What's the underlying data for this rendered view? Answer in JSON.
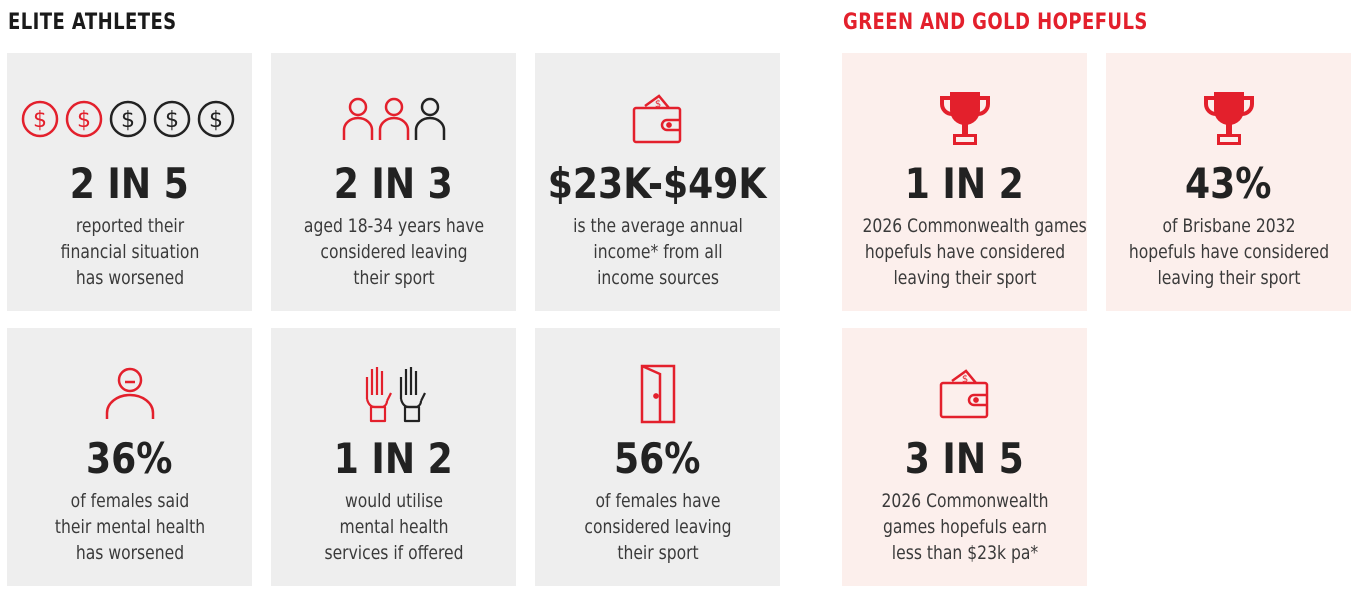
{
  "colors": {
    "accent_red": "#e3202c",
    "card_grey": "#eeeeee",
    "card_pink": "#fcefec",
    "stat_text": "#222222",
    "body_text": "#3a3a3a"
  },
  "sections": {
    "elite": {
      "title": "ELITE ATHLETES"
    },
    "hopefuls": {
      "title": "GREEN AND GOLD HOPEFULS"
    }
  },
  "cards": [
    {
      "icon": "dollar-coins-icon",
      "stat": "2 IN 5",
      "desc": [
        "reported their",
        "financial situation",
        "has worsened"
      ],
      "icon_highlight": {
        "filled": 2,
        "total": 5
      }
    },
    {
      "icon": "people-icon",
      "stat": "2 IN 3",
      "desc": [
        "aged 18-34 years have",
        "considered leaving",
        "their sport"
      ],
      "icon_highlight": {
        "filled": 2,
        "total": 3
      }
    },
    {
      "icon": "wallet-icon",
      "stat": "$23K-$49K",
      "desc": [
        "is the average annual",
        "income* from all",
        "income sources"
      ]
    },
    {
      "icon": "sad-person-icon",
      "stat": "36%",
      "desc": [
        "of females said",
        "their mental health",
        "has worsened"
      ]
    },
    {
      "icon": "raised-hands-icon",
      "stat": "1 IN 2",
      "desc": [
        "would utilise",
        "mental health",
        "services if offered"
      ]
    },
    {
      "icon": "door-icon",
      "stat": "56%",
      "desc": [
        "of females have",
        "considered leaving",
        "their sport"
      ]
    },
    {
      "icon": "trophy-icon",
      "stat": "1 IN 2",
      "desc": [
        "2026 Commonwealth games",
        "hopefuls have considered",
        "leaving their sport"
      ]
    },
    {
      "icon": "trophy-icon",
      "stat": "43%",
      "desc": [
        "of Brisbane 2032",
        "hopefuls have considered",
        "leaving their sport"
      ]
    },
    {
      "icon": "wallet-icon",
      "stat": "3 IN 5",
      "desc": [
        "2026 Commonwealth",
        "games hopefuls earn",
        "less than $23k pa*"
      ]
    }
  ]
}
